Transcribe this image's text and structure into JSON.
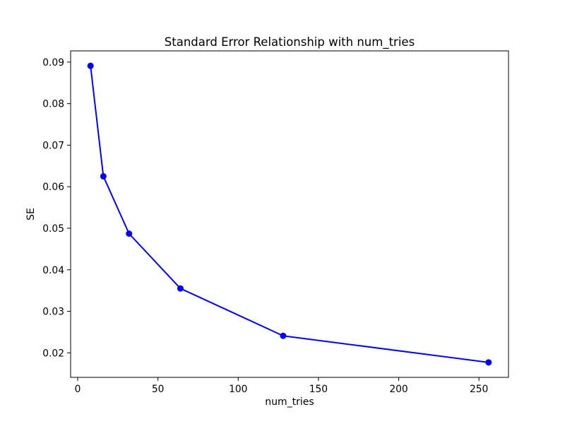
{
  "chart_data": {
    "type": "line",
    "title": "Standard Error Relationship with num_tries",
    "xlabel": "num_tries",
    "ylabel": "SE",
    "x": [
      8,
      16,
      32,
      64,
      128,
      256
    ],
    "series": [
      {
        "name": "SE",
        "values": [
          0.0891,
          0.0625,
          0.0487,
          0.0355,
          0.0241,
          0.0177
        ]
      }
    ],
    "x_ticks": [
      0,
      50,
      100,
      150,
      200,
      250
    ],
    "y_ticks": [
      0.02,
      0.03,
      0.04,
      0.05,
      0.06,
      0.07,
      0.08,
      0.09
    ],
    "xlim": [
      -4.4,
      268.4
    ],
    "ylim": [
      0.0141,
      0.0927
    ],
    "line_color": "#0000ff",
    "marker": "circle",
    "grid": false,
    "legend_position": "none",
    "background_color": "#ffffff",
    "frame_color": "#000000"
  }
}
